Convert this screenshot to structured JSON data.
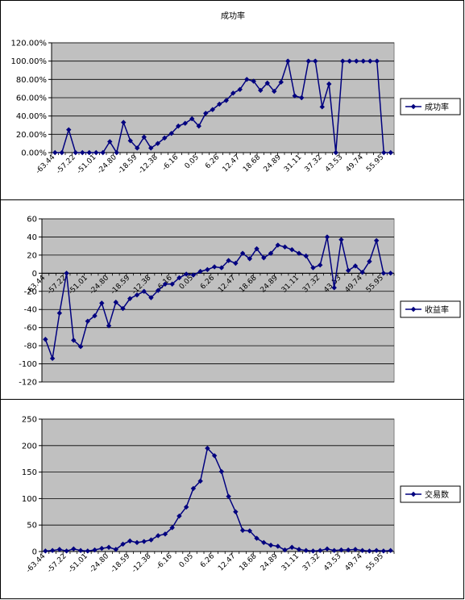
{
  "charts_layout": "three stacked charts sharing x categories",
  "chart_data": [
    {
      "type": "line",
      "title": "成功率",
      "legend": "成功率",
      "legend_position": "right",
      "ylim": [
        0,
        120
      ],
      "y_tick_labels": [
        "0.00%",
        "20.00%",
        "40.00%",
        "60.00%",
        "80.00%",
        "100.00%",
        "120.00%"
      ],
      "x_tick_labels": [
        "-63.44",
        "-57.22",
        "-51.01",
        "-24.80",
        "-18.59",
        "-12.38",
        "-6.16",
        "0.05",
        "6.26",
        "12.47",
        "18.68",
        "24.89",
        "31.11",
        "37.32",
        "43.53",
        "49.74",
        "55.95"
      ],
      "grid": true,
      "marker": "diamond",
      "color": "#00007f",
      "values": [
        0,
        0,
        25,
        0,
        0,
        0,
        0,
        0,
        12,
        0,
        33,
        13,
        5,
        17,
        5,
        10,
        16,
        21,
        29,
        32,
        37,
        29,
        43,
        47,
        53,
        57,
        65,
        69,
        80,
        78,
        68,
        76,
        67,
        77,
        100,
        62,
        60,
        100,
        100,
        50,
        75,
        0,
        100,
        100,
        100,
        100,
        100,
        100,
        0,
        0
      ]
    },
    {
      "type": "line",
      "title": "",
      "legend": "收益率",
      "legend_position": "right",
      "ylim": [
        -120,
        60
      ],
      "y_tick_labels": [
        "-120",
        "-100",
        "-80",
        "-60",
        "-40",
        "-20",
        "0",
        "20",
        "40",
        "60"
      ],
      "x_tick_labels": [
        "-63.44",
        "-57.22",
        "-51.01",
        "-24.80",
        "-18.59",
        "-12.38",
        "-6.16",
        "0.05",
        "6.26",
        "12.47",
        "18.68",
        "24.89",
        "31.11",
        "37.32",
        "43.53",
        "49.74",
        "55.95"
      ],
      "grid": true,
      "marker": "diamond",
      "color": "#00007f",
      "values": [
        -73,
        -94,
        -44,
        0,
        -74,
        -81,
        -53,
        -47,
        -33,
        -58,
        -32,
        -39,
        -28,
        -24,
        -20,
        -27,
        -19,
        -12,
        -12,
        -5,
        -1,
        -2,
        2,
        4,
        7,
        6,
        14,
        11,
        22,
        16,
        27,
        17,
        22,
        31,
        29,
        26,
        22,
        19,
        6,
        9,
        40,
        -16,
        37,
        3,
        8,
        1,
        13,
        36,
        0,
        0
      ]
    },
    {
      "type": "line",
      "title": "",
      "legend": "交易数",
      "legend_position": "right",
      "ylim": [
        0,
        250
      ],
      "y_tick_labels": [
        "0",
        "50",
        "100",
        "150",
        "200",
        "250"
      ],
      "x_tick_labels": [
        "-63.44",
        "-57.22",
        "-51.01",
        "-24.80",
        "-18.59",
        "-12.38",
        "-6.16",
        "0.05",
        "6.26",
        "12.47",
        "18.68",
        "24.89",
        "31.11",
        "37.32",
        "43.53",
        "49.74",
        "55.95"
      ],
      "grid": true,
      "marker": "diamond",
      "color": "#00007f",
      "values": [
        1,
        2,
        4,
        1,
        5,
        2,
        1,
        3,
        6,
        8,
        4,
        14,
        20,
        17,
        19,
        22,
        30,
        33,
        45,
        67,
        84,
        119,
        133,
        195,
        181,
        151,
        104,
        75,
        40,
        39,
        25,
        17,
        12,
        10,
        3,
        8,
        4,
        2,
        1,
        2,
        5,
        2,
        3,
        3,
        4,
        2,
        1,
        2,
        1,
        2
      ]
    }
  ]
}
